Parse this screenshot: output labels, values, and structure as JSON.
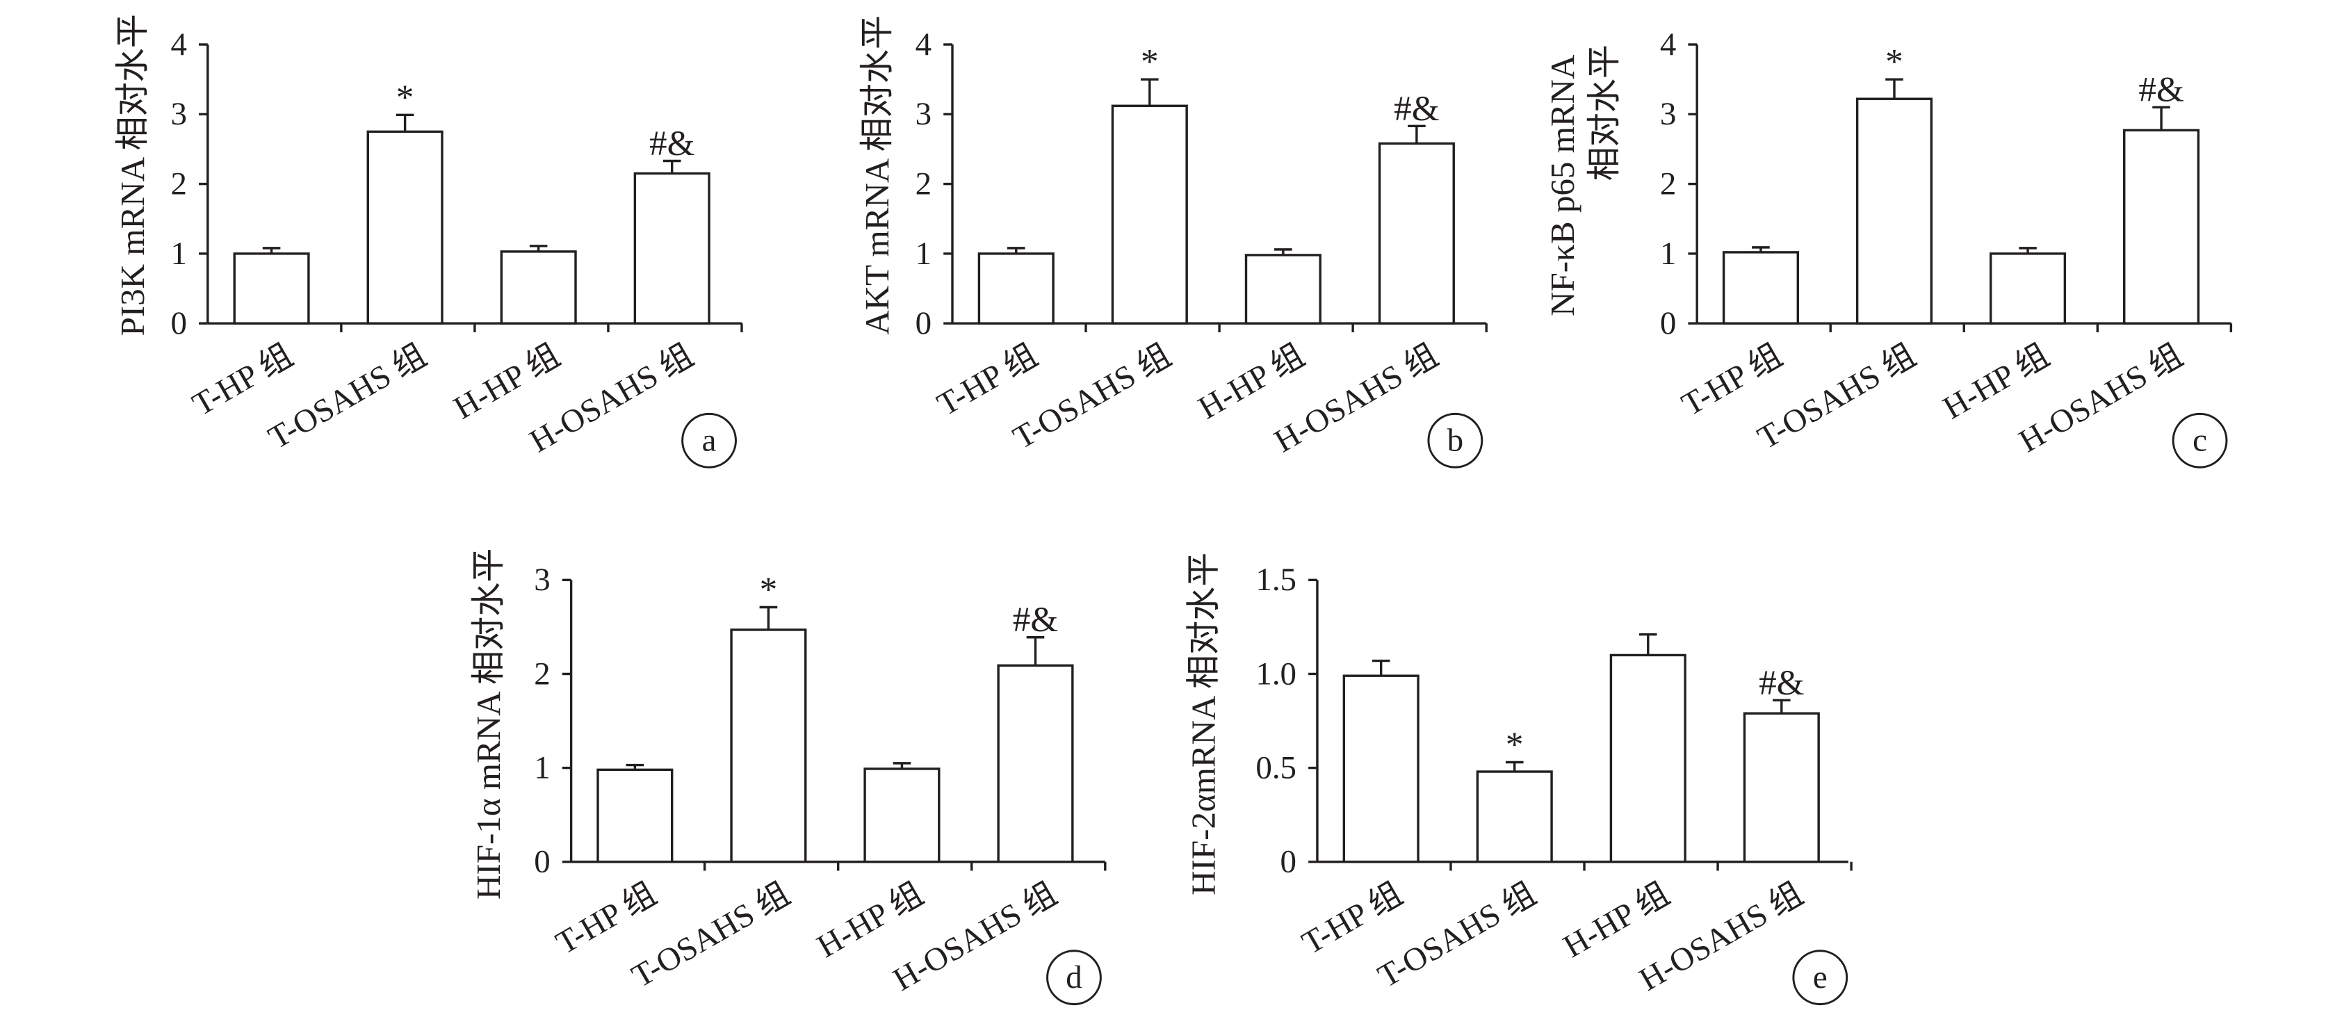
{
  "colors": {
    "line": "#231f20",
    "bar_fill": "#ffffff",
    "background": "#ffffff"
  },
  "chart_data": [
    {
      "panel": "a",
      "type": "bar",
      "title": "",
      "categories": [
        "T-HP 组",
        "T-OSAHS 组",
        "H-HP 组",
        "H-OSAHS 组"
      ],
      "values": [
        1.0,
        2.75,
        1.03,
        2.15
      ],
      "errors": [
        0.08,
        0.24,
        0.08,
        0.18
      ],
      "annotations": [
        null,
        "*",
        null,
        "#&"
      ],
      "ylabel": [
        "PI3K mRNA 相对水平"
      ],
      "xlabel": "",
      "ylim": [
        0,
        4
      ],
      "yticks": [
        0,
        1,
        2,
        3,
        4
      ],
      "ytick_labels": [
        "0",
        "1",
        "2",
        "3",
        "4"
      ],
      "grid": false
    },
    {
      "panel": "b",
      "type": "bar",
      "title": "",
      "categories": [
        "T-HP 组",
        "T-OSAHS 组",
        "H-HP 组",
        "H-OSAHS 组"
      ],
      "values": [
        1.0,
        3.12,
        0.98,
        2.58
      ],
      "errors": [
        0.08,
        0.38,
        0.08,
        0.25
      ],
      "annotations": [
        null,
        "*",
        null,
        "#&"
      ],
      "ylabel": [
        "AKT mRNA 相对水平"
      ],
      "xlabel": "",
      "ylim": [
        0,
        4
      ],
      "yticks": [
        0,
        1,
        2,
        3,
        4
      ],
      "ytick_labels": [
        "0",
        "1",
        "2",
        "3",
        "4"
      ],
      "grid": false
    },
    {
      "panel": "c",
      "type": "bar",
      "title": "",
      "categories": [
        "T-HP 组",
        "T-OSAHS 组",
        "H-HP 组",
        "H-OSAHS 组"
      ],
      "values": [
        1.02,
        3.22,
        1.0,
        2.77
      ],
      "errors": [
        0.07,
        0.28,
        0.08,
        0.33
      ],
      "annotations": [
        null,
        "*",
        null,
        "#&"
      ],
      "ylabel": [
        "NF-κB p65 mRNA",
        "相对水平"
      ],
      "xlabel": "",
      "ylim": [
        0,
        4
      ],
      "yticks": [
        0,
        1,
        2,
        3,
        4
      ],
      "ytick_labels": [
        "0",
        "1",
        "2",
        "3",
        "4"
      ],
      "grid": false
    },
    {
      "panel": "d",
      "type": "bar",
      "title": "",
      "categories": [
        "T-HP 组",
        "T-OSAHS 组",
        "H-HP 组",
        "H-OSAHS 组"
      ],
      "values": [
        0.98,
        2.47,
        0.99,
        2.09
      ],
      "errors": [
        0.05,
        0.24,
        0.06,
        0.3
      ],
      "annotations": [
        null,
        "*",
        null,
        "#&"
      ],
      "ylabel": [
        "HIF-1α mRNA 相对水平"
      ],
      "xlabel": "",
      "ylim": [
        0,
        3
      ],
      "yticks": [
        0,
        1,
        2,
        3
      ],
      "ytick_labels": [
        "0",
        "1",
        "2",
        "3"
      ],
      "grid": false
    },
    {
      "panel": "e",
      "type": "bar",
      "title": "",
      "categories": [
        "T-HP 组",
        "T-OSAHS 组",
        "H-HP 组",
        "H-OSAHS 组"
      ],
      "values": [
        0.99,
        0.48,
        1.1,
        0.79
      ],
      "errors": [
        0.08,
        0.05,
        0.11,
        0.07
      ],
      "annotations": [
        null,
        "*",
        null,
        "#&"
      ],
      "ylabel": [
        "HIF-2αmRNA 相对水平"
      ],
      "xlabel": "",
      "ylim": [
        0,
        1.5
      ],
      "yticks": [
        0,
        0.5,
        1.0,
        1.5
      ],
      "ytick_labels": [
        "0",
        "0.5",
        "1.0",
        "1.5"
      ],
      "grid": false
    }
  ]
}
